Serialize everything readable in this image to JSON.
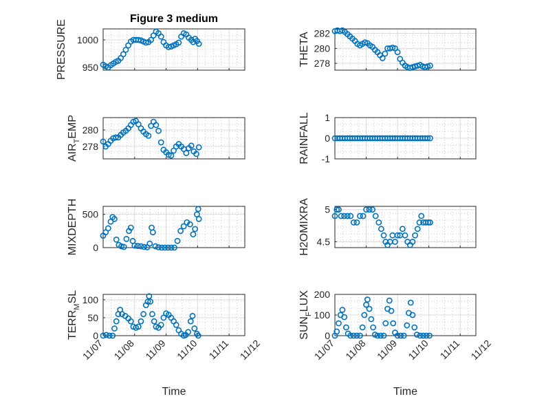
{
  "chart_data": [
    {
      "type": "scatter",
      "title": "Figure 3 medium",
      "ylabel": "PRESSURE",
      "ylabel_sub": "",
      "ylabel_tail": "",
      "xlim": [
        0,
        4.5
      ],
      "ylim": [
        945,
        1020
      ],
      "yticks": [
        950,
        1000
      ],
      "ytick_labels": [
        "950",
        "1000"
      ],
      "xtick_labels": [],
      "xlabel": "",
      "points": [
        [
          0.0,
          955
        ],
        [
          0.08,
          952
        ],
        [
          0.16,
          950
        ],
        [
          0.24,
          954
        ],
        [
          0.32,
          957
        ],
        [
          0.4,
          960
        ],
        [
          0.48,
          962
        ],
        [
          0.56,
          967
        ],
        [
          0.64,
          974
        ],
        [
          0.72,
          982
        ],
        [
          0.8,
          990
        ],
        [
          0.88,
          997
        ],
        [
          0.96,
          1000
        ],
        [
          1.04,
          1000
        ],
        [
          1.12,
          1000
        ],
        [
          1.2,
          999
        ],
        [
          1.28,
          997
        ],
        [
          1.36,
          995
        ],
        [
          1.44,
          996
        ],
        [
          1.52,
          1000
        ],
        [
          1.6,
          1008
        ],
        [
          1.68,
          1015
        ],
        [
          1.76,
          1012
        ],
        [
          1.84,
          1006
        ],
        [
          1.92,
          996
        ],
        [
          2.0,
          990
        ],
        [
          2.08,
          987
        ],
        [
          2.16,
          988
        ],
        [
          2.24,
          990
        ],
        [
          2.32,
          992
        ],
        [
          2.4,
          995
        ],
        [
          2.48,
          1006
        ],
        [
          2.56,
          1012
        ],
        [
          2.64,
          1010
        ],
        [
          2.72,
          1004
        ],
        [
          2.8,
          1000
        ],
        [
          2.86,
          996
        ],
        [
          2.92,
          1002
        ],
        [
          2.98,
          998
        ],
        [
          3.04,
          993
        ]
      ]
    },
    {
      "type": "scatter",
      "title": "",
      "ylabel": "THETA",
      "ylabel_sub": "",
      "ylabel_tail": "",
      "xlim": [
        0,
        4.5
      ],
      "ylim": [
        277.1,
        282.6
      ],
      "yticks": [
        278,
        280,
        282
      ],
      "ytick_labels": [
        "278",
        "280",
        "282"
      ],
      "xtick_labels": [],
      "xlabel": "",
      "points": [
        [
          0.0,
          282.3
        ],
        [
          0.08,
          282.4
        ],
        [
          0.16,
          282.3
        ],
        [
          0.24,
          282.4
        ],
        [
          0.32,
          282.2
        ],
        [
          0.4,
          281.9
        ],
        [
          0.48,
          281.6
        ],
        [
          0.56,
          281.3
        ],
        [
          0.64,
          281.0
        ],
        [
          0.72,
          280.6
        ],
        [
          0.8,
          280.4
        ],
        [
          0.88,
          280.6
        ],
        [
          0.96,
          280.8
        ],
        [
          1.04,
          280.7
        ],
        [
          1.12,
          280.4
        ],
        [
          1.2,
          280.2
        ],
        [
          1.28,
          279.8
        ],
        [
          1.36,
          279.5
        ],
        [
          1.44,
          279.1
        ],
        [
          1.52,
          278.7
        ],
        [
          1.6,
          279.3
        ],
        [
          1.68,
          280.0
        ],
        [
          1.76,
          280.0
        ],
        [
          1.84,
          280.1
        ],
        [
          1.92,
          280.0
        ],
        [
          2.0,
          279.5
        ],
        [
          2.08,
          278.6
        ],
        [
          2.16,
          278.1
        ],
        [
          2.24,
          277.7
        ],
        [
          2.32,
          277.5
        ],
        [
          2.4,
          277.4
        ],
        [
          2.48,
          277.5
        ],
        [
          2.56,
          277.6
        ],
        [
          2.64,
          277.7
        ],
        [
          2.72,
          277.8
        ],
        [
          2.8,
          277.6
        ],
        [
          2.88,
          277.5
        ],
        [
          2.96,
          277.6
        ],
        [
          3.04,
          277.7
        ]
      ]
    },
    {
      "type": "scatter",
      "title": "",
      "ylabel": "AIR",
      "ylabel_sub": "T",
      "ylabel_tail": "EMP",
      "xlim": [
        0,
        4.5
      ],
      "ylim": [
        276.5,
        281.5
      ],
      "yticks": [
        278,
        280
      ],
      "ytick_labels": [
        "278",
        "280"
      ],
      "xtick_labels": [],
      "xlabel": "",
      "points": [
        [
          0.0,
          278.6
        ],
        [
          0.08,
          278.0
        ],
        [
          0.16,
          278.3
        ],
        [
          0.24,
          278.7
        ],
        [
          0.32,
          279.0
        ],
        [
          0.4,
          279.1
        ],
        [
          0.48,
          279.1
        ],
        [
          0.56,
          279.4
        ],
        [
          0.64,
          279.7
        ],
        [
          0.72,
          279.9
        ],
        [
          0.8,
          280.2
        ],
        [
          0.88,
          280.6
        ],
        [
          0.96,
          281.0
        ],
        [
          1.04,
          281.1
        ],
        [
          1.12,
          280.7
        ],
        [
          1.2,
          280.2
        ],
        [
          1.28,
          279.8
        ],
        [
          1.36,
          279.5
        ],
        [
          1.44,
          279.3
        ],
        [
          1.52,
          280.5
        ],
        [
          1.6,
          281.0
        ],
        [
          1.68,
          280.6
        ],
        [
          1.76,
          279.9
        ],
        [
          1.84,
          278.5
        ],
        [
          1.92,
          277.6
        ],
        [
          2.0,
          277.3
        ],
        [
          2.08,
          277.0
        ],
        [
          2.16,
          276.9
        ],
        [
          2.24,
          277.5
        ],
        [
          2.32,
          278.0
        ],
        [
          2.4,
          278.3
        ],
        [
          2.48,
          278.0
        ],
        [
          2.56,
          277.7
        ],
        [
          2.64,
          277.2
        ],
        [
          2.72,
          277.8
        ],
        [
          2.8,
          278.1
        ],
        [
          2.88,
          277.4
        ],
        [
          2.96,
          277.1
        ],
        [
          3.04,
          277.9
        ]
      ]
    },
    {
      "type": "scatter",
      "title": "",
      "ylabel": "RAINFALL",
      "ylabel_sub": "",
      "ylabel_tail": "",
      "xlim": [
        0,
        4.5
      ],
      "ylim": [
        -1,
        1
      ],
      "yticks": [
        -1,
        0,
        1
      ],
      "ytick_labels": [
        "-1",
        "0",
        "1"
      ],
      "xtick_labels": [],
      "xlabel": "",
      "points": [
        [
          0.0,
          0
        ],
        [
          0.08,
          0
        ],
        [
          0.16,
          0
        ],
        [
          0.24,
          0
        ],
        [
          0.32,
          0
        ],
        [
          0.4,
          0
        ],
        [
          0.48,
          0
        ],
        [
          0.56,
          0
        ],
        [
          0.64,
          0
        ],
        [
          0.72,
          0
        ],
        [
          0.8,
          0
        ],
        [
          0.88,
          0
        ],
        [
          0.96,
          0
        ],
        [
          1.04,
          0
        ],
        [
          1.12,
          0
        ],
        [
          1.2,
          0
        ],
        [
          1.28,
          0
        ],
        [
          1.36,
          0
        ],
        [
          1.44,
          0
        ],
        [
          1.52,
          0
        ],
        [
          1.6,
          0
        ],
        [
          1.68,
          0
        ],
        [
          1.76,
          0
        ],
        [
          1.84,
          0
        ],
        [
          1.92,
          0
        ],
        [
          2.0,
          0
        ],
        [
          2.08,
          0
        ],
        [
          2.16,
          0
        ],
        [
          2.24,
          0
        ],
        [
          2.32,
          0
        ],
        [
          2.4,
          0
        ],
        [
          2.48,
          0
        ],
        [
          2.56,
          0
        ],
        [
          2.64,
          0
        ],
        [
          2.72,
          0
        ],
        [
          2.8,
          0
        ],
        [
          2.88,
          0
        ],
        [
          2.96,
          0
        ],
        [
          3.04,
          0
        ]
      ]
    },
    {
      "type": "scatter",
      "title": "",
      "ylabel": "MIXDEPTH",
      "ylabel_sub": "",
      "ylabel_tail": "",
      "xlim": [
        0,
        4.5
      ],
      "ylim": [
        0,
        620
      ],
      "yticks": [
        0,
        500
      ],
      "ytick_labels": [
        "0",
        "500"
      ],
      "xtick_labels": [],
      "xlabel": "",
      "points": [
        [
          0.0,
          180
        ],
        [
          0.08,
          230
        ],
        [
          0.16,
          290
        ],
        [
          0.24,
          390
        ],
        [
          0.3,
          460
        ],
        [
          0.36,
          430
        ],
        [
          0.42,
          120
        ],
        [
          0.5,
          40
        ],
        [
          0.58,
          20
        ],
        [
          0.66,
          10
        ],
        [
          0.74,
          130
        ],
        [
          0.82,
          250
        ],
        [
          0.88,
          300
        ],
        [
          0.94,
          100
        ],
        [
          1.0,
          30
        ],
        [
          1.1,
          25
        ],
        [
          1.2,
          20
        ],
        [
          1.3,
          10
        ],
        [
          1.4,
          5
        ],
        [
          1.48,
          60
        ],
        [
          1.54,
          300
        ],
        [
          1.58,
          230
        ],
        [
          1.66,
          20
        ],
        [
          1.76,
          5
        ],
        [
          1.86,
          0
        ],
        [
          1.96,
          0
        ],
        [
          2.06,
          0
        ],
        [
          2.16,
          0
        ],
        [
          2.26,
          0
        ],
        [
          2.36,
          100
        ],
        [
          2.46,
          250
        ],
        [
          2.56,
          320
        ],
        [
          2.66,
          380
        ],
        [
          2.76,
          350
        ],
        [
          2.86,
          200
        ],
        [
          2.92,
          280
        ],
        [
          2.98,
          500
        ],
        [
          3.02,
          580
        ],
        [
          3.04,
          430
        ]
      ]
    },
    {
      "type": "scatter",
      "title": "",
      "ylabel": "H2OMIXRA",
      "ylabel_sub": "",
      "ylabel_tail": "",
      "xlim": [
        0,
        4.5
      ],
      "ylim": [
        4.41,
        5.05
      ],
      "yticks": [
        4.5,
        5
      ],
      "ytick_labels": [
        "4.5",
        "5"
      ],
      "xtick_labels": [],
      "xlabel": "",
      "points": [
        [
          0.0,
          4.9
        ],
        [
          0.06,
          5.0
        ],
        [
          0.12,
          5.0
        ],
        [
          0.2,
          4.9
        ],
        [
          0.3,
          4.9
        ],
        [
          0.4,
          4.9
        ],
        [
          0.5,
          4.9
        ],
        [
          0.6,
          4.8
        ],
        [
          0.7,
          4.8
        ],
        [
          0.8,
          4.9
        ],
        [
          0.9,
          4.9
        ],
        [
          1.0,
          5.0
        ],
        [
          1.1,
          5.0
        ],
        [
          1.2,
          5.0
        ],
        [
          1.3,
          4.9
        ],
        [
          1.4,
          4.8
        ],
        [
          1.48,
          4.7
        ],
        [
          1.56,
          4.6
        ],
        [
          1.62,
          4.5
        ],
        [
          1.68,
          4.45
        ],
        [
          1.76,
          4.5
        ],
        [
          1.84,
          4.6
        ],
        [
          1.92,
          4.5
        ],
        [
          2.0,
          4.6
        ],
        [
          2.08,
          4.6
        ],
        [
          2.16,
          4.7
        ],
        [
          2.24,
          4.6
        ],
        [
          2.32,
          4.5
        ],
        [
          2.4,
          4.45
        ],
        [
          2.48,
          4.5
        ],
        [
          2.56,
          4.6
        ],
        [
          2.64,
          4.7
        ],
        [
          2.7,
          4.8
        ],
        [
          2.76,
          4.9
        ],
        [
          2.82,
          4.8
        ],
        [
          2.9,
          4.8
        ],
        [
          2.98,
          4.8
        ],
        [
          3.04,
          4.8
        ]
      ]
    },
    {
      "type": "scatter",
      "title": "",
      "ylabel": "TERR",
      "ylabel_sub": "M",
      "ylabel_tail": "SL",
      "xlim": [
        0,
        4.5
      ],
      "ylim": [
        0,
        115
      ],
      "yticks": [
        0,
        50,
        100
      ],
      "ytick_labels": [
        "0",
        "50",
        "100"
      ],
      "xtick_labels": [
        "11/07",
        "11/08",
        "11/09",
        "11/10",
        "11/11",
        "11/12"
      ],
      "xlabel": "Time",
      "points": [
        [
          0.0,
          0
        ],
        [
          0.1,
          2
        ],
        [
          0.2,
          0
        ],
        [
          0.3,
          0
        ],
        [
          0.36,
          20
        ],
        [
          0.42,
          40
        ],
        [
          0.48,
          60
        ],
        [
          0.54,
          72
        ],
        [
          0.6,
          60
        ],
        [
          0.7,
          55
        ],
        [
          0.8,
          48
        ],
        [
          0.88,
          40
        ],
        [
          0.96,
          25
        ],
        [
          1.04,
          22
        ],
        [
          1.12,
          25
        ],
        [
          1.2,
          40
        ],
        [
          1.28,
          60
        ],
        [
          1.36,
          85
        ],
        [
          1.42,
          95
        ],
        [
          1.46,
          110
        ],
        [
          1.5,
          95
        ],
        [
          1.56,
          60
        ],
        [
          1.62,
          40
        ],
        [
          1.68,
          25
        ],
        [
          1.76,
          22
        ],
        [
          1.84,
          30
        ],
        [
          1.92,
          50
        ],
        [
          2.0,
          62
        ],
        [
          2.08,
          58
        ],
        [
          2.16,
          50
        ],
        [
          2.24,
          40
        ],
        [
          2.32,
          30
        ],
        [
          2.4,
          15
        ],
        [
          2.48,
          5
        ],
        [
          2.56,
          0
        ],
        [
          2.62,
          2
        ],
        [
          2.7,
          10
        ],
        [
          2.78,
          40
        ],
        [
          2.84,
          55
        ],
        [
          2.9,
          20
        ],
        [
          2.98,
          5
        ],
        [
          3.02,
          0
        ]
      ]
    },
    {
      "type": "scatter",
      "title": "",
      "ylabel": "SUN",
      "ylabel_sub": "F",
      "ylabel_tail": "LUX",
      "xlim": [
        0,
        4.5
      ],
      "ylim": [
        0,
        200
      ],
      "yticks": [
        0,
        100,
        200
      ],
      "ytick_labels": [
        "0",
        "100",
        "200"
      ],
      "xtick_labels": [
        "11/07",
        "11/08",
        "11/09",
        "11/10",
        "11/11",
        "11/12"
      ],
      "xlabel": "Time",
      "points": [
        [
          0.0,
          0
        ],
        [
          0.06,
          20
        ],
        [
          0.12,
          60
        ],
        [
          0.18,
          100
        ],
        [
          0.24,
          125
        ],
        [
          0.3,
          90
        ],
        [
          0.36,
          40
        ],
        [
          0.42,
          10
        ],
        [
          0.5,
          0
        ],
        [
          0.6,
          0
        ],
        [
          0.7,
          0
        ],
        [
          0.8,
          0
        ],
        [
          0.88,
          40
        ],
        [
          0.94,
          100
        ],
        [
          1.0,
          150
        ],
        [
          1.04,
          175
        ],
        [
          1.1,
          130
        ],
        [
          1.16,
          80
        ],
        [
          1.22,
          40
        ],
        [
          1.28,
          5
        ],
        [
          1.36,
          0
        ],
        [
          1.46,
          0
        ],
        [
          1.56,
          0
        ],
        [
          1.62,
          60
        ],
        [
          1.68,
          130
        ],
        [
          1.74,
          170
        ],
        [
          1.8,
          120
        ],
        [
          1.86,
          60
        ],
        [
          1.92,
          15
        ],
        [
          2.0,
          0
        ],
        [
          2.1,
          0
        ],
        [
          2.2,
          0
        ],
        [
          2.3,
          50
        ],
        [
          2.36,
          110
        ],
        [
          2.42,
          160
        ],
        [
          2.48,
          100
        ],
        [
          2.54,
          40
        ],
        [
          2.62,
          5
        ],
        [
          2.72,
          0
        ],
        [
          2.82,
          0
        ],
        [
          2.92,
          0
        ],
        [
          3.02,
          0
        ]
      ]
    }
  ]
}
